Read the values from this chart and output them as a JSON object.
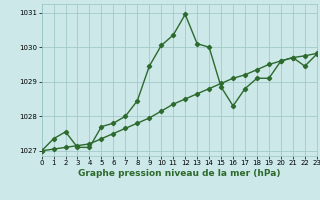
{
  "line1_x": [
    0,
    1,
    2,
    3,
    4,
    5,
    6,
    7,
    8,
    9,
    10,
    11,
    12,
    13,
    14,
    15,
    16,
    17,
    18,
    19,
    20,
    21,
    22,
    23
  ],
  "line1_y": [
    1027.0,
    1027.35,
    1027.55,
    1027.1,
    1027.1,
    1027.7,
    1027.8,
    1028.0,
    1028.45,
    1029.45,
    1030.05,
    1030.35,
    1030.95,
    1030.1,
    1030.0,
    1028.85,
    1028.3,
    1028.8,
    1029.1,
    1029.1,
    1029.6,
    1029.7,
    1029.45,
    1029.8
  ],
  "line2_x": [
    0,
    1,
    2,
    3,
    4,
    5,
    6,
    7,
    8,
    9,
    10,
    11,
    12,
    13,
    14,
    15,
    16,
    17,
    18,
    19,
    20,
    21,
    22,
    23
  ],
  "line2_y": [
    1027.0,
    1027.05,
    1027.1,
    1027.15,
    1027.2,
    1027.35,
    1027.5,
    1027.65,
    1027.8,
    1027.95,
    1028.15,
    1028.35,
    1028.5,
    1028.65,
    1028.8,
    1028.95,
    1029.1,
    1029.2,
    1029.35,
    1029.5,
    1029.6,
    1029.7,
    1029.75,
    1029.82
  ],
  "xlim": [
    0,
    23
  ],
  "ylim": [
    1026.85,
    1031.25
  ],
  "yticks": [
    1027,
    1028,
    1029,
    1030,
    1031
  ],
  "xticks": [
    0,
    1,
    2,
    3,
    4,
    5,
    6,
    7,
    8,
    9,
    10,
    11,
    12,
    13,
    14,
    15,
    16,
    17,
    18,
    19,
    20,
    21,
    22,
    23
  ],
  "xlabel": "Graphe pression niveau de la mer (hPa)",
  "line_color": "#2d6a2d",
  "bg_color": "#cce8e8",
  "grid_color": "#9ac4c4",
  "marker": "D",
  "marker_size": 2.2,
  "linewidth": 1.0,
  "label_fontsize": 6.5,
  "tick_fontsize": 5.0
}
